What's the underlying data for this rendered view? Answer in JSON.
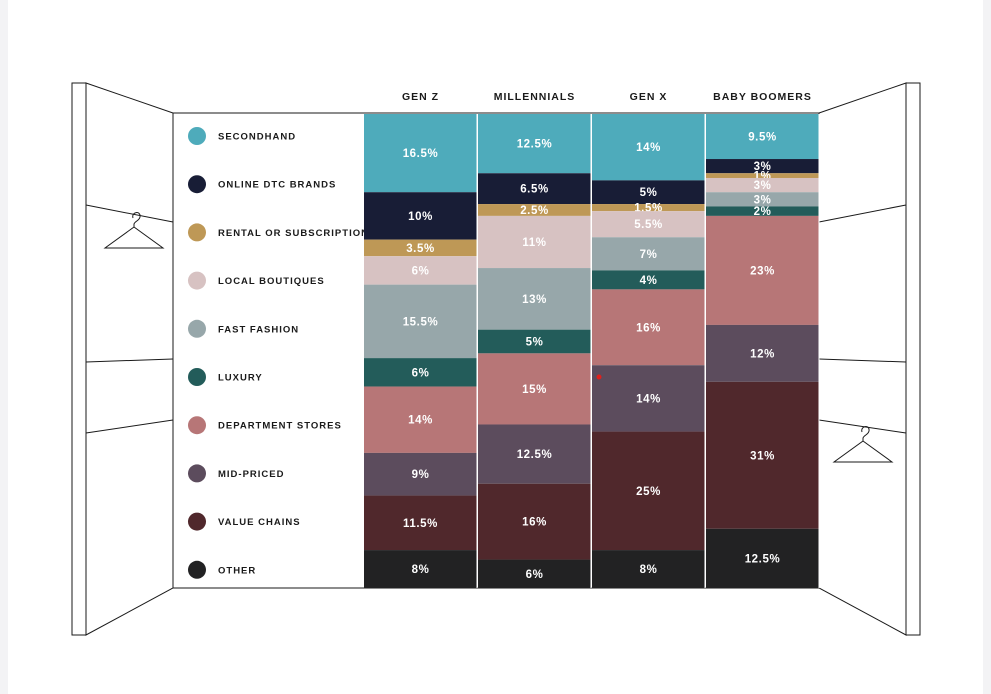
{
  "chart_data": {
    "type": "bar",
    "stacked": true,
    "normalized_to_percent": true,
    "categories": [
      "GEN Z",
      "MILLENNIALS",
      "GEN X",
      "BABY BOOMERS"
    ],
    "series": [
      {
        "name": "SECONDHAND",
        "color": "#4eabbb",
        "values": [
          16.5,
          12.5,
          14,
          9.5
        ],
        "labels": [
          "16.5%",
          "12.5%",
          "14%",
          "9.5%"
        ]
      },
      {
        "name": "ONLINE DTC BRANDS",
        "color": "#181d36",
        "values": [
          10,
          6.5,
          5,
          3
        ],
        "labels": [
          "10%",
          "6.5%",
          "5%",
          "3%"
        ]
      },
      {
        "name": "RENTAL OR SUBSCRIPTION",
        "color": "#be9856",
        "values": [
          3.5,
          2.5,
          1.5,
          1
        ],
        "labels": [
          "3.5%",
          "2.5%",
          "1.5%",
          "1%"
        ]
      },
      {
        "name": "LOCAL BOUTIQUES",
        "color": "#d7c2c2",
        "values": [
          6,
          11,
          5.5,
          3
        ],
        "labels": [
          "6%",
          "11%",
          "5.5%",
          "3%"
        ]
      },
      {
        "name": "FAST FASHION",
        "color": "#97a7aa",
        "values": [
          15.5,
          13,
          7,
          3
        ],
        "labels": [
          "15.5%",
          "13%",
          "7%",
          "3%"
        ]
      },
      {
        "name": "LUXURY",
        "color": "#235c5a",
        "values": [
          6,
          5,
          4,
          2
        ],
        "labels": [
          "6%",
          "5%",
          "4%",
          "2%"
        ]
      },
      {
        "name": "DEPARTMENT STORES",
        "color": "#b77677",
        "values": [
          14,
          15,
          16,
          23
        ],
        "labels": [
          "14%",
          "15%",
          "16%",
          "23%"
        ]
      },
      {
        "name": "MID-PRICED",
        "color": "#5c4c5d",
        "values": [
          9,
          12.5,
          14,
          12
        ],
        "labels": [
          "9%",
          "12.5%",
          "14%",
          "12%"
        ]
      },
      {
        "name": "VALUE CHAINS",
        "color": "#50282c",
        "values": [
          11.5,
          16,
          25,
          31
        ],
        "labels": [
          "11.5%",
          "16%",
          "25%",
          "31%"
        ]
      },
      {
        "name": "OTHER",
        "color": "#222223",
        "values": [
          8,
          6,
          8,
          12.5
        ],
        "labels": [
          "8%",
          "6%",
          "8%",
          "12.5%"
        ]
      }
    ],
    "title": "",
    "xlabel": "",
    "ylabel": "",
    "legend": "left",
    "grid": false
  }
}
